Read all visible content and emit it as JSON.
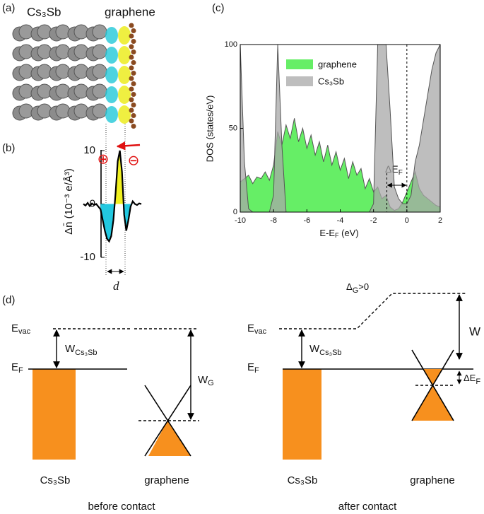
{
  "panel_a": {
    "label": "(a)",
    "left_title": "Cs₃Sb",
    "right_title": "graphene"
  },
  "chart_data": [
    {
      "type": "line",
      "label": "(b)",
      "y_label": "Δn̄ (10⁻³ e/Å³)",
      "values": [
        0,
        -0.3,
        0.2,
        -0.4,
        0.1,
        -0.2,
        0,
        -0.5,
        -1,
        -3,
        -5,
        -6.5,
        -7,
        -6,
        -3,
        2,
        8,
        10,
        6,
        -2,
        -5,
        -3,
        -0.5,
        0.5,
        0,
        -0.2,
        0.1,
        0
      ],
      "ylim": [
        -10,
        10
      ],
      "yticks": [
        -10,
        0,
        10
      ],
      "annotations": {
        "plus": "⊕",
        "minus": "⊖",
        "width": "d"
      }
    },
    {
      "type": "area",
      "label": "(c)",
      "y_label": "DOS (states/eV)",
      "x_label": {
        "base": "E-E",
        "sub": "F",
        "tail": " (eV)"
      },
      "x": [
        -10,
        -9.75,
        -9.5,
        -9.25,
        -9,
        -8.75,
        -8.5,
        -8.25,
        -8,
        -7.75,
        -7.5,
        -7.25,
        -7,
        -6.75,
        -6.5,
        -6.25,
        -6,
        -5.75,
        -5.5,
        -5.25,
        -5,
        -4.75,
        -4.5,
        -4.25,
        -4,
        -3.75,
        -3.5,
        -3.25,
        -3,
        -2.75,
        -2.5,
        -2.25,
        -2,
        -1.75,
        -1.5,
        -1.25,
        -1,
        -0.75,
        -0.5,
        -0.25,
        0,
        0.25,
        0.5,
        0.75,
        1,
        1.25,
        1.5,
        1.75,
        2
      ],
      "series": [
        {
          "name": "graphene",
          "color": "#66ee66",
          "values": [
            18,
            20,
            22,
            17,
            21,
            20,
            24,
            19,
            28,
            48,
            40,
            52,
            44,
            56,
            42,
            50,
            38,
            46,
            34,
            42,
            30,
            40,
            28,
            36,
            25,
            32,
            20,
            30,
            22,
            26,
            14,
            20,
            12,
            15,
            8,
            10,
            3,
            1,
            2,
            6,
            12,
            18,
            24,
            14,
            10,
            8,
            6,
            4,
            3
          ]
        },
        {
          "name": "Cs₃Sb",
          "color": "#a8a8a8",
          "values": [
            100,
            30,
            2,
            0,
            0,
            0,
            0,
            0,
            10,
            100,
            40,
            0,
            0,
            0,
            0,
            0,
            0,
            0,
            0,
            0,
            0,
            0,
            0,
            0,
            0,
            0,
            0,
            0,
            0,
            0,
            0,
            0,
            5,
            100,
            100,
            100,
            60,
            15,
            8,
            5,
            5,
            10,
            30,
            40,
            55,
            70,
            85,
            95,
            100
          ]
        }
      ],
      "xlim": [
        -10,
        2
      ],
      "ylim": [
        0,
        100
      ],
      "xticks": [
        -10,
        -8,
        -6,
        -4,
        -2,
        0,
        2
      ],
      "yticks": [
        0,
        50,
        100
      ],
      "vlines": [
        -1.2,
        0
      ],
      "annotation": {
        "base": "ΔE",
        "sub": "F"
      }
    }
  ],
  "panel_d": {
    "label": "(d)",
    "before": {
      "evac": {
        "base": "E",
        "sub": "vac"
      },
      "work": {
        "base": "W",
        "sub": "Cs₃Sb"
      },
      "ef": {
        "base": "E",
        "sub": "F"
      },
      "wg": {
        "base": "W",
        "sub": "G"
      },
      "left": "Cs₃Sb",
      "right": "graphene",
      "caption": "before contact"
    },
    "after": {
      "evac": {
        "base": "E",
        "sub": "vac"
      },
      "work": {
        "base": "W",
        "sub": "Cs₃Sb"
      },
      "ef": {
        "base": "E",
        "sub": "F"
      },
      "delta_g": {
        "base": "Δ",
        "sub": "G",
        "tail": ">0"
      },
      "w": "W",
      "def": {
        "base": "ΔE",
        "sub": "F"
      },
      "left": "Cs₃Sb",
      "right": "graphene",
      "caption": "after contact"
    }
  }
}
